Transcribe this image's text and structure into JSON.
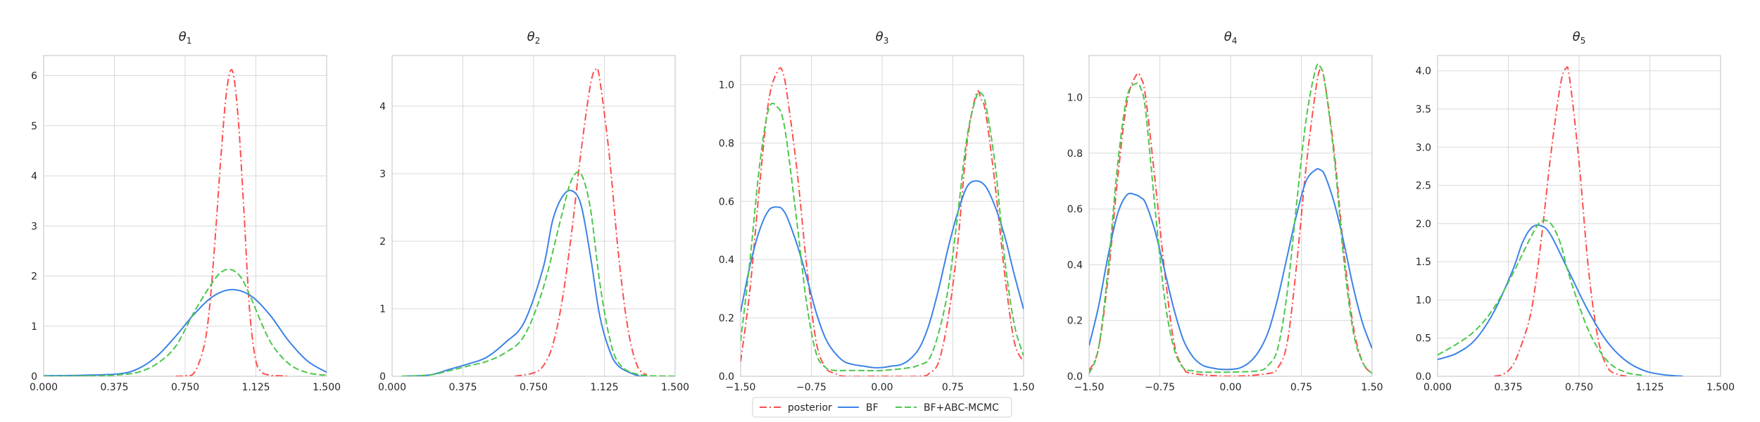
{
  "chart_data": [
    {
      "type": "line",
      "title_symbol": "θ",
      "title_sub": "1",
      "xlim": [
        0,
        1.5
      ],
      "ylim": [
        0,
        6.4
      ],
      "xticks": [
        "0.000",
        "0.375",
        "0.750",
        "1.125",
        "1.500"
      ],
      "yticks": [
        "0",
        "1",
        "2",
        "3",
        "4",
        "5",
        "6"
      ],
      "grid": true,
      "series": [
        {
          "name": "posterior",
          "x": [
            0.7,
            0.75,
            0.8,
            0.85,
            0.88,
            0.91,
            0.94,
            0.97,
            1.0,
            1.03,
            1.06,
            1.09,
            1.12,
            1.15,
            1.2,
            1.25,
            1.3
          ],
          "y": [
            0,
            0.01,
            0.08,
            0.6,
            1.4,
            2.8,
            4.4,
            5.7,
            6.1,
            5.2,
            3.4,
            1.4,
            0.4,
            0.1,
            0.02,
            0.01,
            0
          ]
        },
        {
          "name": "BF",
          "x": [
            0,
            0.2,
            0.4,
            0.5,
            0.6,
            0.7,
            0.8,
            0.9,
            1.0,
            1.1,
            1.2,
            1.3,
            1.4,
            1.5
          ],
          "y": [
            0.01,
            0.02,
            0.05,
            0.15,
            0.4,
            0.8,
            1.25,
            1.6,
            1.73,
            1.6,
            1.22,
            0.7,
            0.3,
            0.08
          ]
        },
        {
          "name": "BF+ABC-MCMC",
          "x": [
            0,
            0.3,
            0.4,
            0.5,
            0.6,
            0.7,
            0.8,
            0.9,
            0.95,
            1.0,
            1.05,
            1.1,
            1.2,
            1.3,
            1.4,
            1.5
          ],
          "y": [
            0,
            0.01,
            0.03,
            0.08,
            0.25,
            0.6,
            1.3,
            1.9,
            2.1,
            2.12,
            1.95,
            1.55,
            0.7,
            0.25,
            0.07,
            0.02
          ]
        }
      ]
    },
    {
      "type": "line",
      "title_symbol": "θ",
      "title_sub": "2",
      "xlim": [
        0,
        1.5
      ],
      "ylim": [
        0,
        4.75
      ],
      "xticks": [
        "0.000",
        "0.375",
        "0.750",
        "1.125",
        "1.500"
      ],
      "yticks": [
        "0",
        "1",
        "2",
        "3",
        "4"
      ],
      "grid": true,
      "series": [
        {
          "name": "posterior",
          "x": [
            0.65,
            0.75,
            0.8,
            0.85,
            0.9,
            0.95,
            1.0,
            1.05,
            1.08,
            1.1,
            1.15,
            1.2,
            1.25,
            1.3,
            1.35
          ],
          "y": [
            0,
            0.05,
            0.15,
            0.45,
            1.1,
            2.1,
            3.3,
            4.3,
            4.55,
            4.4,
            3.3,
            1.8,
            0.7,
            0.15,
            0.02
          ]
        },
        {
          "name": "BF",
          "x": [
            0.05,
            0.2,
            0.3,
            0.4,
            0.5,
            0.6,
            0.7,
            0.8,
            0.85,
            0.9,
            0.95,
            1.0,
            1.05,
            1.1,
            1.15,
            1.2,
            1.3,
            1.35
          ],
          "y": [
            0,
            0.02,
            0.1,
            0.18,
            0.28,
            0.5,
            0.8,
            1.6,
            2.3,
            2.65,
            2.75,
            2.55,
            1.8,
            0.9,
            0.4,
            0.15,
            0.01,
            0
          ]
        },
        {
          "name": "BF+ABC-MCMC",
          "x": [
            0.05,
            0.2,
            0.3,
            0.4,
            0.5,
            0.6,
            0.7,
            0.8,
            0.9,
            0.95,
            1.0,
            1.05,
            1.1,
            1.15,
            1.2,
            1.3,
            1.5
          ],
          "y": [
            0,
            0.02,
            0.08,
            0.15,
            0.22,
            0.35,
            0.6,
            1.3,
            2.4,
            2.9,
            3.0,
            2.5,
            1.4,
            0.6,
            0.2,
            0.03,
            0
          ]
        }
      ]
    },
    {
      "type": "line",
      "title_symbol": "θ",
      "title_sub": "3",
      "xlim": [
        -1.5,
        1.5
      ],
      "ylim": [
        0,
        1.1
      ],
      "xticks": [
        "−1.50",
        "−0.75",
        "0.00",
        "0.75",
        "1.50"
      ],
      "yticks": [
        "0.0",
        "0.2",
        "0.4",
        "0.6",
        "0.8",
        "1.0"
      ],
      "grid": true,
      "series": [
        {
          "name": "posterior",
          "x": [
            -1.5,
            -1.4,
            -1.3,
            -1.2,
            -1.1,
            -1.05,
            -1.0,
            -0.9,
            -0.8,
            -0.7,
            -0.6,
            -0.5,
            -0.4,
            0,
            0.4,
            0.5,
            0.6,
            0.7,
            0.8,
            0.9,
            1.0,
            1.05,
            1.1,
            1.2,
            1.3,
            1.4,
            1.5
          ],
          "y": [
            0.05,
            0.3,
            0.65,
            0.95,
            1.05,
            1.04,
            0.95,
            0.7,
            0.38,
            0.12,
            0.03,
            0.01,
            0,
            0,
            0,
            0.01,
            0.05,
            0.2,
            0.45,
            0.8,
            0.97,
            0.95,
            0.9,
            0.65,
            0.35,
            0.12,
            0.05
          ]
        },
        {
          "name": "BF",
          "x": [
            -1.5,
            -1.4,
            -1.3,
            -1.2,
            -1.1,
            -1.05,
            -1.0,
            -0.9,
            -0.8,
            -0.7,
            -0.6,
            -0.5,
            -0.4,
            -0.3,
            -0.2,
            -0.1,
            0,
            0.1,
            0.2,
            0.3,
            0.4,
            0.5,
            0.6,
            0.7,
            0.8,
            0.9,
            1.0,
            1.1,
            1.2,
            1.3,
            1.4,
            1.5
          ],
          "y": [
            0.22,
            0.38,
            0.5,
            0.57,
            0.58,
            0.57,
            0.54,
            0.45,
            0.34,
            0.22,
            0.13,
            0.08,
            0.05,
            0.04,
            0.035,
            0.03,
            0.03,
            0.035,
            0.04,
            0.06,
            0.1,
            0.18,
            0.3,
            0.44,
            0.56,
            0.65,
            0.67,
            0.65,
            0.58,
            0.48,
            0.35,
            0.23
          ]
        },
        {
          "name": "BF+ABC-MCMC",
          "x": [
            -1.5,
            -1.4,
            -1.3,
            -1.2,
            -1.1,
            -1.05,
            -1.0,
            -0.9,
            -0.8,
            -0.7,
            -0.6,
            -0.5,
            -0.4,
            -0.3,
            0,
            0.3,
            0.4,
            0.5,
            0.6,
            0.7,
            0.8,
            0.9,
            1.0,
            1.05,
            1.1,
            1.2,
            1.3,
            1.4,
            1.5
          ],
          "y": [
            0.12,
            0.4,
            0.72,
            0.92,
            0.92,
            0.88,
            0.78,
            0.52,
            0.25,
            0.08,
            0.03,
            0.02,
            0.02,
            0.02,
            0.02,
            0.03,
            0.04,
            0.06,
            0.15,
            0.3,
            0.55,
            0.82,
            0.96,
            0.97,
            0.93,
            0.72,
            0.4,
            0.18,
            0.07
          ]
        }
      ]
    },
    {
      "type": "line",
      "title_symbol": "θ",
      "title_sub": "4",
      "xlim": [
        -1.5,
        1.5
      ],
      "ylim": [
        0,
        1.15
      ],
      "xticks": [
        "−1.50",
        "−0.75",
        "0.00",
        "0.75",
        "1.50"
      ],
      "yticks": [
        "0.0",
        "0.2",
        "0.4",
        "0.6",
        "0.8",
        "1.0"
      ],
      "grid": true,
      "series": [
        {
          "name": "posterior",
          "x": [
            -1.5,
            -1.4,
            -1.3,
            -1.2,
            -1.1,
            -1.0,
            -0.95,
            -0.9,
            -0.8,
            -0.7,
            -0.6,
            -0.5,
            -0.4,
            0,
            0.4,
            0.5,
            0.6,
            0.7,
            0.8,
            0.9,
            0.95,
            1.0,
            1.1,
            1.2,
            1.3,
            1.4,
            1.5
          ],
          "y": [
            0.02,
            0.1,
            0.35,
            0.7,
            0.98,
            1.08,
            1.07,
            1.0,
            0.7,
            0.38,
            0.12,
            0.03,
            0.01,
            0,
            0.01,
            0.03,
            0.12,
            0.4,
            0.75,
            1.02,
            1.1,
            1.05,
            0.8,
            0.45,
            0.18,
            0.05,
            0.01
          ]
        },
        {
          "name": "BF",
          "x": [
            -1.5,
            -1.4,
            -1.3,
            -1.2,
            -1.1,
            -1.0,
            -0.95,
            -0.9,
            -0.8,
            -0.7,
            -0.6,
            -0.5,
            -0.4,
            -0.3,
            -0.2,
            -0.1,
            0,
            0.1,
            0.2,
            0.3,
            0.4,
            0.5,
            0.6,
            0.7,
            0.8,
            0.9,
            0.95,
            1.0,
            1.1,
            1.2,
            1.3,
            1.4,
            1.5
          ],
          "y": [
            0.11,
            0.25,
            0.43,
            0.58,
            0.65,
            0.65,
            0.64,
            0.62,
            0.52,
            0.38,
            0.24,
            0.13,
            0.07,
            0.04,
            0.03,
            0.025,
            0.025,
            0.03,
            0.05,
            0.09,
            0.16,
            0.28,
            0.43,
            0.58,
            0.7,
            0.74,
            0.74,
            0.72,
            0.62,
            0.48,
            0.32,
            0.19,
            0.1
          ]
        },
        {
          "name": "BF+ABC-MCMC",
          "x": [
            -1.5,
            -1.4,
            -1.3,
            -1.2,
            -1.1,
            -1.0,
            -0.95,
            -0.9,
            -0.8,
            -0.7,
            -0.6,
            -0.5,
            -0.4,
            -0.3,
            0,
            0.3,
            0.4,
            0.5,
            0.6,
            0.7,
            0.8,
            0.9,
            0.95,
            1.0,
            1.1,
            1.2,
            1.3,
            1.4,
            1.5
          ],
          "y": [
            0.01,
            0.1,
            0.38,
            0.75,
            1.0,
            1.05,
            1.03,
            0.95,
            0.6,
            0.28,
            0.1,
            0.03,
            0.02,
            0.015,
            0.015,
            0.02,
            0.04,
            0.1,
            0.3,
            0.62,
            0.92,
            1.1,
            1.11,
            1.05,
            0.78,
            0.42,
            0.16,
            0.05,
            0.01
          ]
        }
      ]
    },
    {
      "type": "line",
      "title_symbol": "θ",
      "title_sub": "5",
      "xlim": [
        0,
        1.5
      ],
      "ylim": [
        0,
        4.2
      ],
      "xticks": [
        "0.000",
        "0.375",
        "0.750",
        "1.125",
        "1.500"
      ],
      "yticks": [
        "0.0",
        "0.5",
        "1.0",
        "1.5",
        "2.0",
        "2.5",
        "3.0",
        "3.5",
        "4.0"
      ],
      "grid": true,
      "series": [
        {
          "name": "posterior",
          "x": [
            0.3,
            0.35,
            0.4,
            0.45,
            0.5,
            0.55,
            0.6,
            0.65,
            0.68,
            0.7,
            0.75,
            0.8,
            0.85,
            0.9,
            0.95,
            1.0
          ],
          "y": [
            0,
            0.03,
            0.15,
            0.45,
            0.9,
            1.8,
            2.9,
            3.8,
            4.03,
            3.9,
            2.8,
            1.4,
            0.5,
            0.12,
            0.03,
            0
          ],
          "name_visible": true
        },
        {
          "name": "BF",
          "x": [
            0,
            0.1,
            0.2,
            0.3,
            0.4,
            0.45,
            0.5,
            0.55,
            0.6,
            0.7,
            0.8,
            0.9,
            1.0,
            1.1,
            1.2,
            1.3
          ],
          "y": [
            0.22,
            0.3,
            0.48,
            0.85,
            1.4,
            1.75,
            1.95,
            1.97,
            1.85,
            1.35,
            0.85,
            0.45,
            0.2,
            0.07,
            0.02,
            0
          ]
        },
        {
          "name": "BF+ABC-MCMC",
          "x": [
            0,
            0.1,
            0.2,
            0.3,
            0.4,
            0.5,
            0.55,
            0.6,
            0.65,
            0.7,
            0.8,
            0.9,
            1.0,
            1.1
          ],
          "y": [
            0.28,
            0.42,
            0.6,
            0.9,
            1.35,
            1.85,
            2.03,
            2.0,
            1.75,
            1.3,
            0.6,
            0.2,
            0.05,
            0.01
          ]
        }
      ]
    }
  ],
  "legend": {
    "entries": [
      {
        "label": "posterior",
        "color": "#ff4d4d",
        "dash": "dashdot"
      },
      {
        "label": "BF",
        "color": "#3b82e8",
        "dash": "solid"
      },
      {
        "label": "BF+ABC-MCMC",
        "color": "#4cc74c",
        "dash": "dashed"
      }
    ],
    "placement": "bottom-center"
  },
  "colors": {
    "posterior": "#ff4d4d",
    "BF": "#3b82e8",
    "BF+ABC-MCMC": "#4cc74c",
    "grid": "#d9d9d9",
    "axis": "#cccccc"
  }
}
